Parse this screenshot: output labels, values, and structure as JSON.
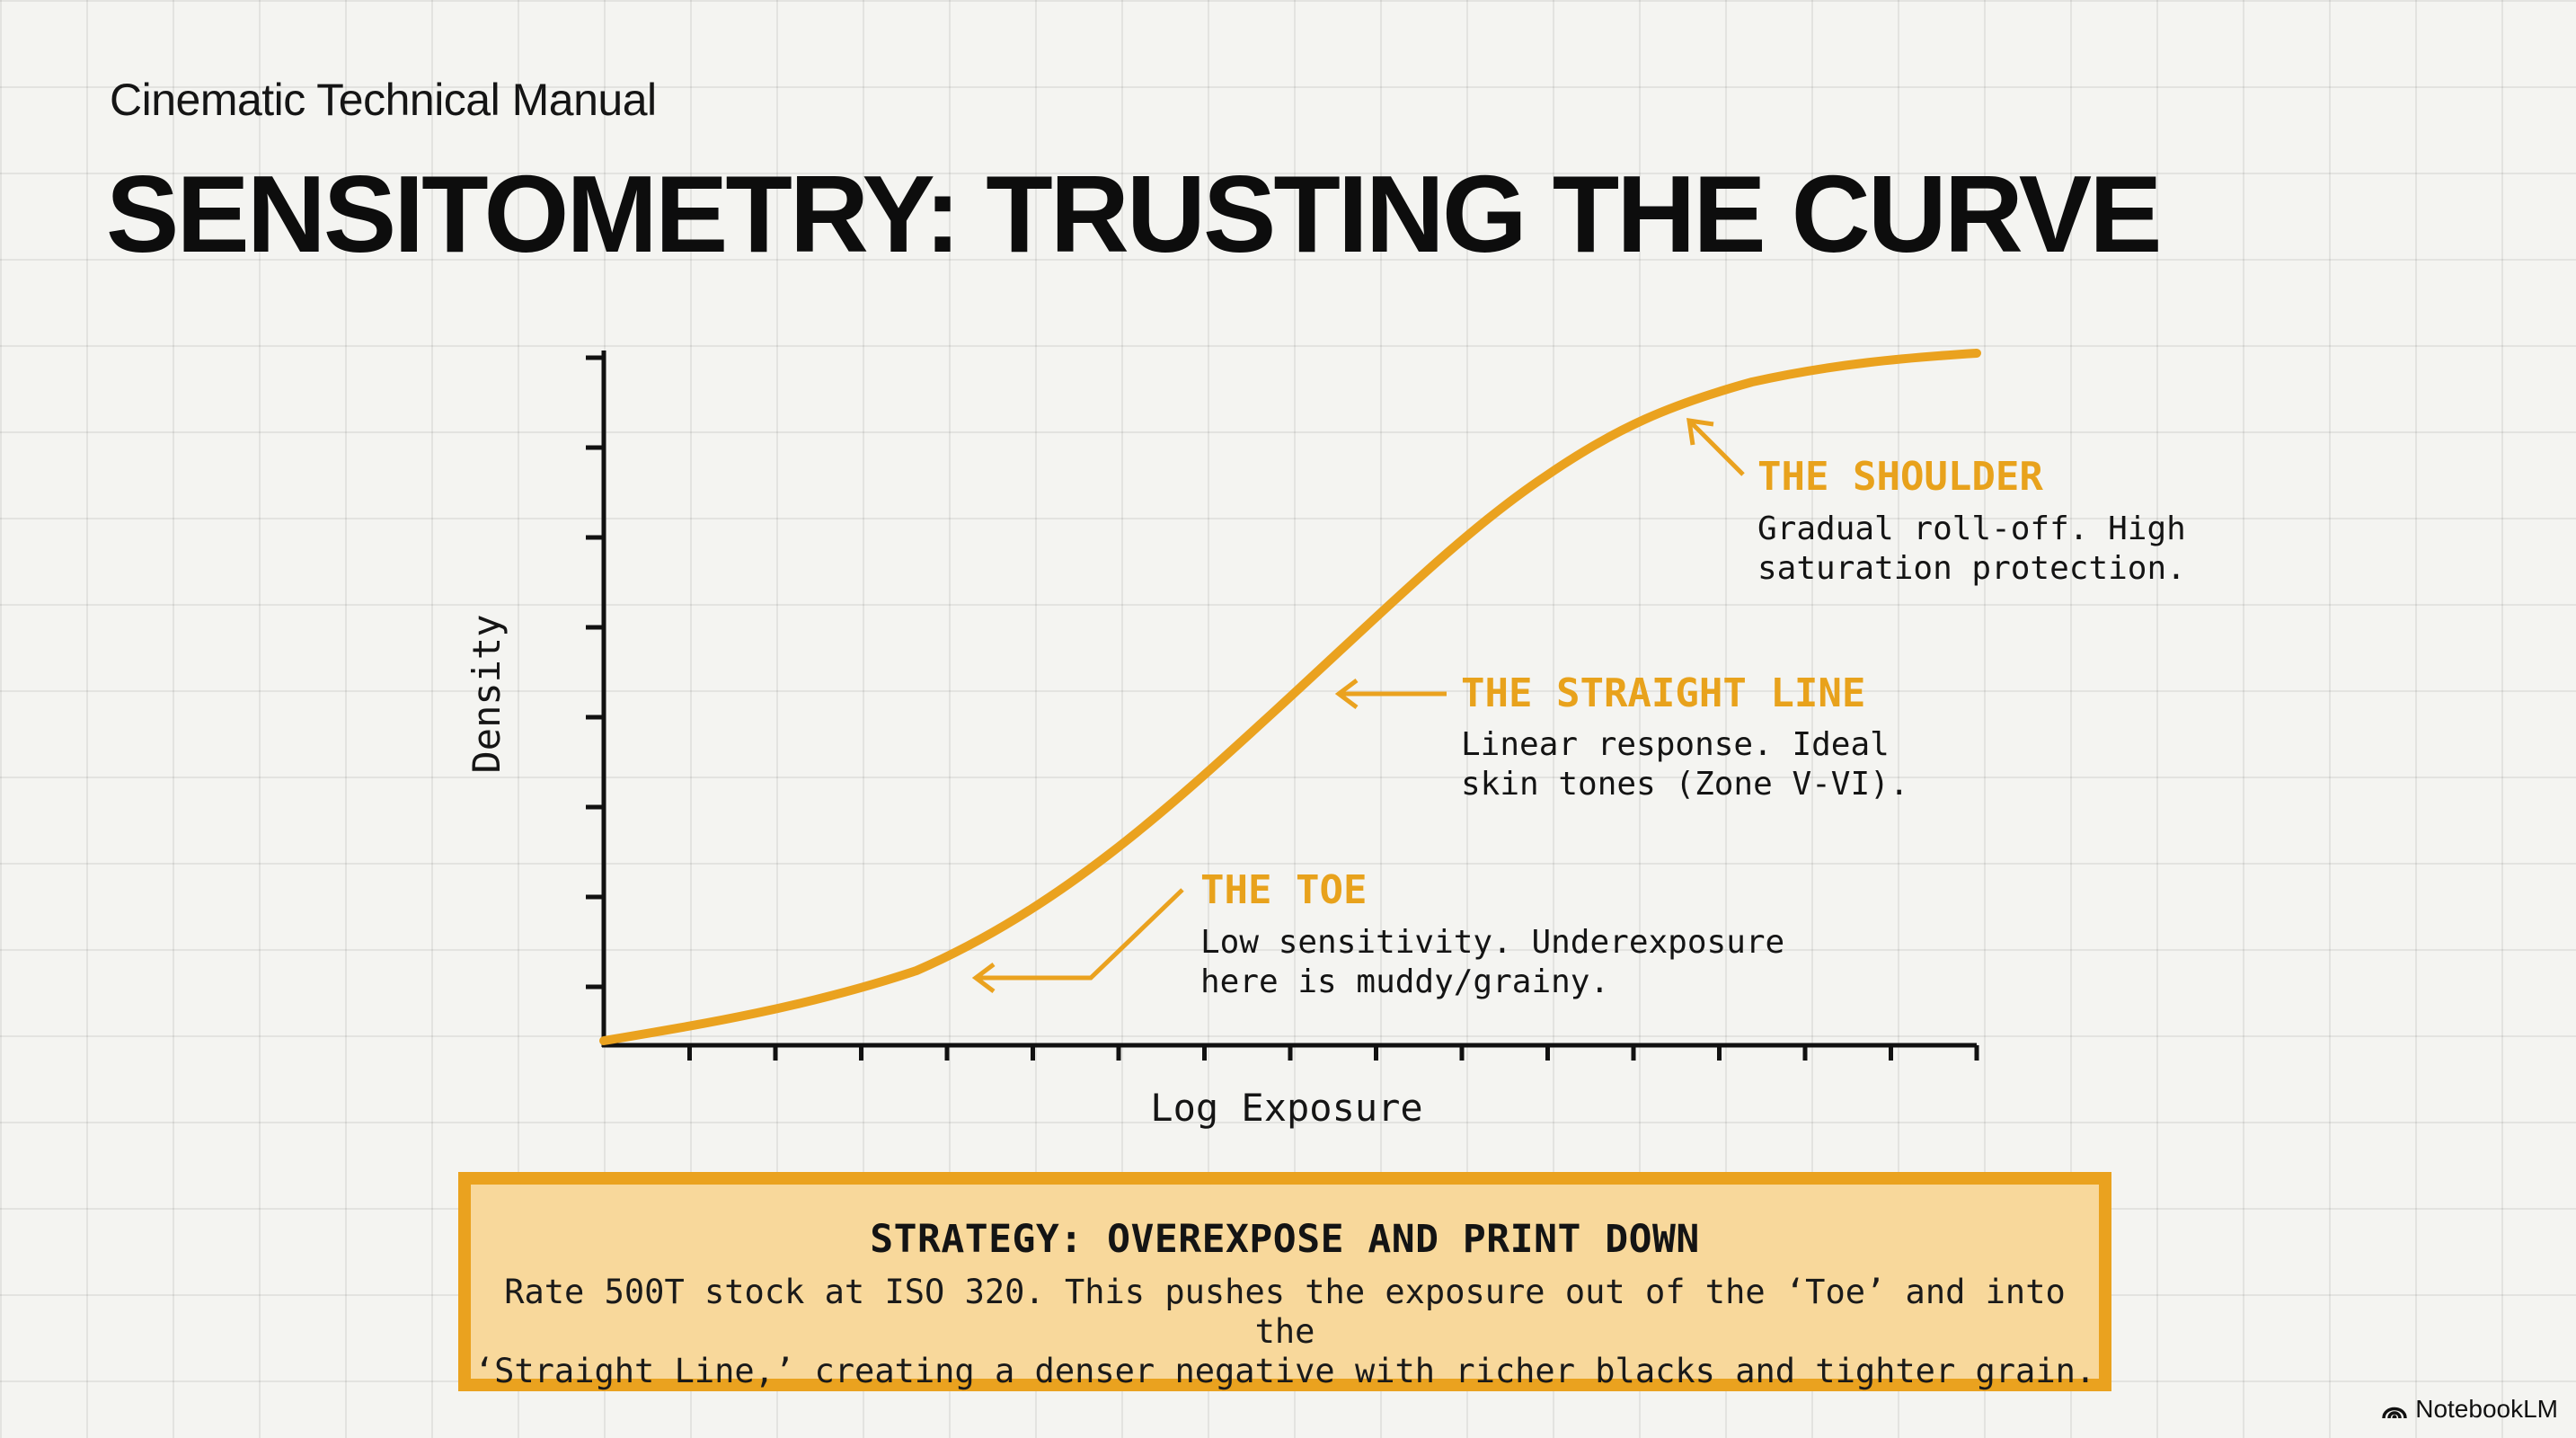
{
  "header": {
    "subtitle": "Cinematic Technical Manual",
    "title": "SENSITOMETRY: TRUSTING THE CURVE"
  },
  "chart_data": {
    "type": "line",
    "title": "",
    "xlabel": "Log Exposure",
    "ylabel": "Density",
    "curve": "characteristic S-curve rising from the toe through the straight line to the shoulder",
    "annotations": [
      {
        "title": "THE SHOULDER",
        "lines": [
          "Gradual roll-off. High",
          "saturation protection."
        ]
      },
      {
        "title": "THE STRAIGHT LINE",
        "lines": [
          "Linear response. Ideal",
          "skin tones (Zone V-VI)."
        ]
      },
      {
        "title": "THE TOE",
        "lines": [
          "Low sensitivity. Underexposure",
          "here is muddy/grainy."
        ]
      }
    ]
  },
  "strategy": {
    "title": "STRATEGY: OVEREXPOSE AND PRINT DOWN",
    "lines": [
      "Rate 500T stock at ISO 320. This pushes the exposure out of the ‘Toe’ and into the",
      "‘Straight Line,’ creating a denser negative with richer blacks and tighter grain."
    ]
  },
  "brand": {
    "name": "NotebookLM"
  },
  "colors": {
    "accent": "#eaa21f",
    "accent_text": "#e8a21c",
    "box_fill": "#f8d89b",
    "ink": "#111111"
  }
}
